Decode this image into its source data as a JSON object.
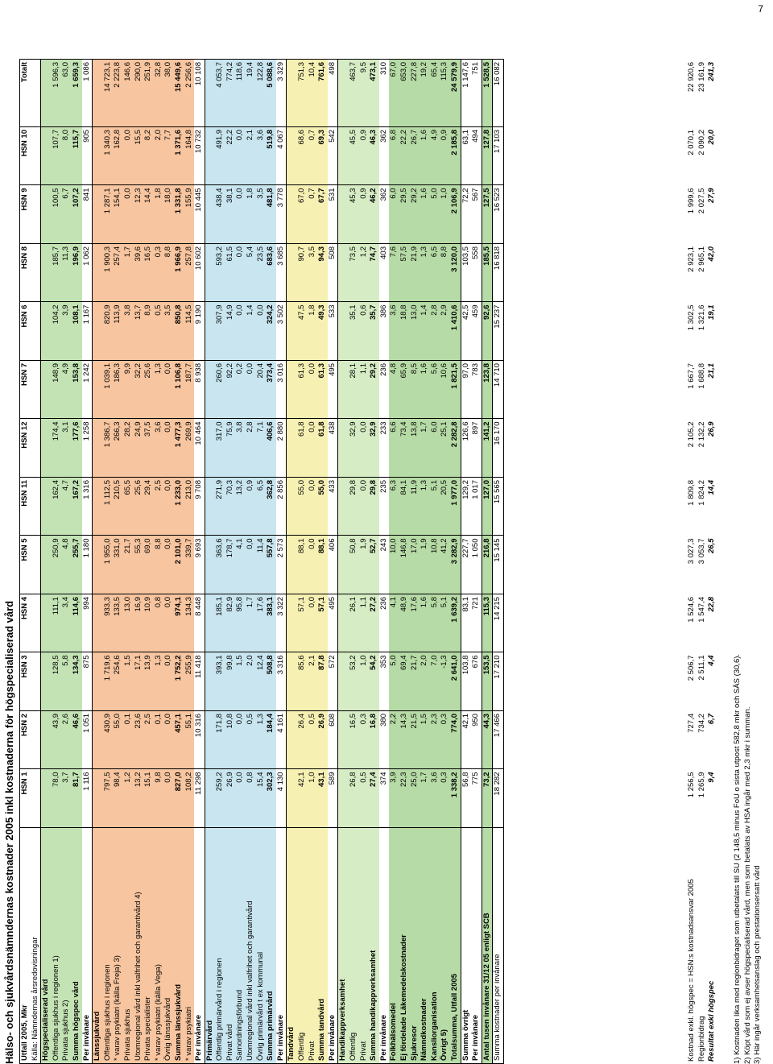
{
  "page_number": "7",
  "title": "Hälso- och sjukvårdsnämndernas kostnader 2005 inkl kostnaderna för högspecialiserad vård",
  "header": {
    "label": "Utfall 2005, Mkr",
    "source": "Källa: Nämndernas årsredovisningar",
    "columns": [
      "HSN 1",
      "HSN 2",
      "HSN 3",
      "HSN 4",
      "HSN 5",
      "HSN 11",
      "HSN 12",
      "HSN 7",
      "HSN 6",
      "HSN 8",
      "HSN 9",
      "HSN 10",
      "Totalt"
    ]
  },
  "rows": [
    {
      "label": "Högspecialiserad vård",
      "values": [],
      "style": "sec bold",
      "bg": "green"
    },
    {
      "label": "Offentliga sjukhus i regionen 1)",
      "values": [
        "78,0",
        "43,9",
        "128,5",
        "111,1",
        "250,9",
        "162,4",
        "174,4",
        "148,9",
        "104,2",
        "185,7",
        "100,5",
        "107,7",
        "1 596,3"
      ],
      "bg": "green"
    },
    {
      "label": "Privata sjukhus 2)",
      "values": [
        "3,7",
        "2,6",
        "5,8",
        "3,4",
        "4,8",
        "4,7",
        "3,1",
        "4,9",
        "3,9",
        "11,3",
        "6,7",
        "8,0",
        "63,0"
      ],
      "bg": "green"
    },
    {
      "label": "Summa högspec vård",
      "values": [
        "81,7",
        "46,6",
        "134,3",
        "114,6",
        "255,7",
        "167,2",
        "177,6",
        "153,8",
        "108,1",
        "196,9",
        "107,2",
        "115,7",
        "1 659,3"
      ],
      "style": "bold",
      "bg": "green"
    },
    {
      "label": "Per invånare",
      "values": [
        "1 116",
        "1 051",
        "875",
        "994",
        "1 180",
        "1 316",
        "1 258",
        "1 242",
        "1 167",
        "1 062",
        "841",
        "905",
        "1 086"
      ],
      "style": "bold-label",
      "bg": "white"
    },
    {
      "label": "Länssjukvård",
      "values": [],
      "style": "sec bold",
      "bg": "orange"
    },
    {
      "label": "Offentliga sjukhus i regionen",
      "values": [
        "797,5",
        "430,9",
        "1 719,6",
        "933,3",
        "1 955,0",
        "1 112,5",
        "1 386,7",
        "1 039,1",
        "820,9",
        "1 900,3",
        "1 287,1",
        "1 340,3",
        "14 723,1"
      ],
      "bg": "orange"
    },
    {
      "label": " * varav psykiatri (källa Freja) 3)",
      "values": [
        "98,4",
        "55,0",
        "254,6",
        "133,5",
        "331,0",
        "210,5",
        "266,3",
        "186,3",
        "113,9",
        "257,4",
        "154,1",
        "162,8",
        "2 223,8"
      ],
      "bg": "orange"
    },
    {
      "label": "Privata sjukhus",
      "values": [
        "1,2",
        "0,1",
        "1,5",
        "13,0",
        "21,7",
        "65,5",
        "28,2",
        "9,9",
        "3,8",
        "1,7",
        "0,0",
        "0,0",
        "146,6"
      ],
      "bg": "orange"
    },
    {
      "label": "Utomregional vård inkl valfrihet och garantivård 4)",
      "values": [
        "13,2",
        "23,6",
        "17,1",
        "16,9",
        "55,3",
        "25,6",
        "24,9",
        "32,2",
        "13,7",
        "39,6",
        "12,3",
        "15,5",
        "290,0"
      ],
      "bg": "orange"
    },
    {
      "label": "Privata specialister",
      "values": [
        "15,1",
        "2,5",
        "13,9",
        "10,9",
        "69,0",
        "29,4",
        "37,5",
        "25,6",
        "8,9",
        "16,5",
        "14,4",
        "8,2",
        "251,9"
      ],
      "bg": "orange"
    },
    {
      "label": " * varav psykiatri (källa Vega)",
      "values": [
        "9,8",
        "0,1",
        "1,3",
        "0,8",
        "8,8",
        "2,5",
        "3,6",
        "1,3",
        "0,5",
        "0,3",
        "1,8",
        "2,0",
        "32,8"
      ],
      "bg": "orange"
    },
    {
      "label": "Övrig länssjukvård",
      "values": [
        "0,0",
        "0,0",
        "0,0",
        "0,0",
        "0,0",
        "0,0",
        "0,0",
        "0,0",
        "3,5",
        "8,8",
        "18,0",
        "7,7",
        "38,0"
      ],
      "bg": "orange"
    },
    {
      "label": "Summa länssjukvård",
      "values": [
        "827,0",
        "457,1",
        "1 752,2",
        "974,1",
        "2 101,0",
        "1 233,0",
        "1 477,3",
        "1 106,8",
        "850,8",
        "1 966,9",
        "1 331,8",
        "1 371,6",
        "15 449,6"
      ],
      "style": "bold",
      "bg": "orange"
    },
    {
      "label": " * varav psykiatri",
      "values": [
        "108,2",
        "55,1",
        "255,9",
        "134,3",
        "339,7",
        "213,0",
        "269,9",
        "187,7",
        "114,5",
        "257,8",
        "155,9",
        "164,8",
        "2 256,6"
      ],
      "bg": "orange"
    },
    {
      "label": "Per invånare",
      "values": [
        "11 298",
        "10 316",
        "11 418",
        "8 448",
        "9 693",
        "9 708",
        "10 464",
        "8 938",
        "9 190",
        "10 602",
        "10 445",
        "10 732",
        "10 108"
      ],
      "style": "bold-label",
      "bg": "white"
    },
    {
      "label": "Primärvård",
      "values": [],
      "style": "sec bold",
      "bg": "blue"
    },
    {
      "label": "Offentlig primärvård i regionen",
      "values": [
        "259,2",
        "171,8",
        "393,1",
        "185,1",
        "363,6",
        "271,9",
        "317,0",
        "260,6",
        "307,9",
        "593,2",
        "438,4",
        "491,9",
        "4 053,7"
      ],
      "bg": "blue"
    },
    {
      "label": "Privat vård",
      "values": [
        "26,9",
        "10,8",
        "99,8",
        "82,9",
        "178,7",
        "70,3",
        "75,9",
        "92,2",
        "14,9",
        "61,5",
        "38,1",
        "22,2",
        "774,2"
      ],
      "bg": "blue"
    },
    {
      "label": "Samordningsförbund",
      "values": [
        "0,0",
        "0,0",
        "1,5",
        "95,8",
        "4,1",
        "13,2",
        "3,8",
        "0,2",
        "0,0",
        "0,0",
        "0,0",
        "0,0",
        "118,6"
      ],
      "bg": "blue"
    },
    {
      "label": "Utomregional vård inkl valfrihet och garantivård",
      "values": [
        "0,8",
        "0,5",
        "2,0",
        "1,7",
        "0,0",
        "0,9",
        "2,8",
        "0,0",
        "1,4",
        "5,4",
        "1,8",
        "2,1",
        "19,4"
      ],
      "bg": "blue"
    },
    {
      "label": "Övrig primärvård t ex kommunal",
      "values": [
        "15,4",
        "1,3",
        "12,4",
        "17,6",
        "11,4",
        "6,5",
        "7,1",
        "20,4",
        "0,0",
        "23,5",
        "3,5",
        "3,6",
        "122,8"
      ],
      "bg": "blue"
    },
    {
      "label": "Summa primärvård",
      "values": [
        "302,3",
        "184,4",
        "508,8",
        "383,1",
        "557,8",
        "362,8",
        "406,6",
        "373,4",
        "324,2",
        "683,6",
        "481,8",
        "519,8",
        "5 088,6"
      ],
      "style": "bold",
      "bg": "blue"
    },
    {
      "label": "Per invånare",
      "values": [
        "4 130",
        "4 161",
        "3 316",
        "3 322",
        "2 573",
        "2 856",
        "2 880",
        "3 016",
        "3 502",
        "3 685",
        "3 778",
        "4 067",
        "3 329"
      ],
      "style": "bold-label",
      "bg": "white"
    },
    {
      "label": "Tandvård",
      "values": [],
      "style": "sec bold",
      "bg": "yellow"
    },
    {
      "label": "Offentlig",
      "values": [
        "42,1",
        "26,4",
        "85,6",
        "57,1",
        "88,1",
        "55,0",
        "61,8",
        "61,3",
        "47,5",
        "90,7",
        "67,0",
        "68,6",
        "751,3"
      ],
      "bg": "yellow"
    },
    {
      "label": "Privat",
      "values": [
        "1,0",
        "0,5",
        "2,1",
        "0,0",
        "0,0",
        "0,0",
        "0,0",
        "0,0",
        "1,8",
        "3,5",
        "0,7",
        "0,7",
        "10,4"
      ],
      "bg": "yellow"
    },
    {
      "label": "Summa tandvård",
      "values": [
        "43,1",
        "26,9",
        "87,8",
        "57,1",
        "88,1",
        "55,0",
        "61,8",
        "61,3",
        "49,3",
        "94,3",
        "67,7",
        "69,3",
        "761,6"
      ],
      "style": "bold",
      "bg": "yellow"
    },
    {
      "label": "Per invånare",
      "values": [
        "589",
        "608",
        "572",
        "495",
        "406",
        "433",
        "438",
        "495",
        "533",
        "508",
        "531",
        "542",
        "498"
      ],
      "style": "bold-label",
      "bg": "white"
    },
    {
      "label": "Handikappverksamhet",
      "values": [],
      "style": "sec bold",
      "bg": "lgreen"
    },
    {
      "label": "Offentlig",
      "values": [
        "26,8",
        "16,5",
        "53,2",
        "26,1",
        "50,8",
        "29,8",
        "32,9",
        "28,1",
        "35,1",
        "73,5",
        "45,3",
        "45,5",
        "463,7"
      ],
      "bg": "lgreen"
    },
    {
      "label": "Privat",
      "values": [
        "0,5",
        "0,3",
        "1,0",
        "1,1",
        "1,9",
        "0,0",
        "0,0",
        "1,1",
        "0,6",
        "1,2",
        "0,9",
        "0,9",
        "9,5"
      ],
      "bg": "lgreen"
    },
    {
      "label": "Summa handikappverksamhet",
      "values": [
        "27,4",
        "16,8",
        "54,2",
        "27,2",
        "52,7",
        "29,8",
        "32,9",
        "29,2",
        "35,7",
        "74,7",
        "46,2",
        "46,3",
        "473,1"
      ],
      "style": "bold",
      "bg": "lgreen"
    },
    {
      "label": "Per invånare",
      "values": [
        "374",
        "380",
        "353",
        "236",
        "243",
        "235",
        "233",
        "236",
        "386",
        "403",
        "362",
        "362",
        "310"
      ],
      "style": "bold-label",
      "bg": "white"
    },
    {
      "label": "Folkhälsomedel",
      "values": [
        "3,9",
        "2,2",
        "5,0",
        "4,1",
        "10,0",
        "6,3",
        "6,6",
        "4,8",
        "3,6",
        "7,6",
        "6,0",
        "6,8",
        "67,0"
      ],
      "style": "bold-label",
      "bg": "pgreen"
    },
    {
      "label": "Ej fördelade Läkemedelskostnader",
      "values": [
        "22,3",
        "14,3",
        "69,4",
        "48,9",
        "146,8",
        "84,1",
        "73,4",
        "65,9",
        "18,8",
        "57,5",
        "29,5",
        "22,2",
        "653,0"
      ],
      "style": "bold-label",
      "bg": "pgreen"
    },
    {
      "label": "Sjukresor",
      "values": [
        "25,0",
        "21,5",
        "21,7",
        "17,6",
        "17,0",
        "11,9",
        "13,8",
        "8,5",
        "13,0",
        "21,9",
        "29,2",
        "26,7",
        "227,8"
      ],
      "style": "bold-label",
      "bg": "pgreen"
    },
    {
      "label": "Nämndkostnader",
      "values": [
        "1,7",
        "1,5",
        "2,0",
        "1,6",
        "1,9",
        "1,3",
        "1,7",
        "1,6",
        "1,4",
        "1,3",
        "1,6",
        "1,6",
        "19,2"
      ],
      "style": "bold-label",
      "bg": "pgreen"
    },
    {
      "label": "Kansliorganisation",
      "values": [
        "3,6",
        "2,3",
        "7,0",
        "5,8",
        "10,8",
        "5,1",
        "6,0",
        "5,6",
        "2,8",
        "6,5",
        "5,0",
        "4,9",
        "65,4"
      ],
      "style": "bold-label",
      "bg": "pgreen"
    },
    {
      "label": "Övrigt 5)",
      "values": [
        "0,3",
        "0,3",
        "-1,3",
        "5,1",
        "41,2",
        "20,5",
        "25,1",
        "10,6",
        "2,9",
        "8,8",
        "1,0",
        "0,9",
        "115,3"
      ],
      "style": "bold-label",
      "bg": "pgreen"
    },
    {
      "label": "Totalsumma, Utfall 2005",
      "values": [
        "1 338,2",
        "774,0",
        "2 641,0",
        "1 639,2",
        "3 282,9",
        "1 977,0",
        "2 282,8",
        "1 821,5",
        "1 410,6",
        "3 120,0",
        "2 106,9",
        "2 185,8",
        "24 579,9"
      ],
      "style": "bold",
      "bg": "pgreen"
    },
    {
      "label": "Summa övrigt",
      "values": [
        "56,8",
        "42,1",
        "103,8",
        "83,1",
        "227,7",
        "129,2",
        "126,6",
        "97,0",
        "42,5",
        "103,5",
        "72,2",
        "63,1",
        "1 147,6"
      ],
      "style": "bold-label",
      "bg": "white"
    },
    {
      "label": "Per invånare",
      "values": [
        "775",
        "950",
        "676",
        "721",
        "1 050",
        "1 017",
        "897",
        "783",
        "459",
        "558",
        "567",
        "494",
        "751"
      ],
      "style": "bold-label",
      "bg": "white"
    },
    {
      "label": "Antal tusen invånare 31/12 05  enligt SCB",
      "values": [
        "73,2",
        "44,3",
        "153,5",
        "115,3",
        "216,8",
        "127,0",
        "141,2",
        "123,8",
        "92,6",
        "185,5",
        "127,5",
        "127,8",
        "1 528,5"
      ],
      "style": "bold",
      "bg": "pgreen"
    },
    {
      "label": "Summa kostnader per invånare",
      "values": [
        "18 282",
        "17 466",
        "17 210",
        "14 215",
        "15 145",
        "15 565",
        "16 170",
        "14 710",
        "15 237",
        "16 818",
        "16 523",
        "17 103",
        "16 082"
      ],
      "bg": "white"
    }
  ],
  "lower_rows": [
    {
      "label": "Kostnad exkl. högspec = HSN:s kostnadsansvar 2005",
      "values": [
        "1 256,5",
        "727,4",
        "2 506,7",
        "1 524,6",
        "3 027,3",
        "1 809,8",
        "2 105,2",
        "1 667,7",
        "1 302,5",
        "2 923,1",
        "1 999,6",
        "2 070,1",
        "22 920,6"
      ]
    },
    {
      "label": "Regionbidrag",
      "values": [
        "1 265,9",
        "734,2",
        "2 511,1",
        "1 547,4",
        "3 053,7",
        "1 824,2",
        "2 132,2",
        "1 688,8",
        "1 321,6",
        "2 965,1",
        "2 027,5",
        "2 090,2",
        "23 161,9"
      ]
    },
    {
      "label": "Resultat exkl högspec",
      "values": [
        "9,4",
        "6,7",
        "4,4",
        "22,8",
        "26,5",
        "14,4",
        "26,9",
        "21,1",
        "19,1",
        "42,0",
        "27,9",
        "20,0",
        "241,3"
      ],
      "style": "bi"
    }
  ],
  "footnotes": [
    "1) Kostnaden lika med regionbidraget som utbetalats till SU (2 148,5 minus FoU o sista utpost 582,8 mkr och SÄS (30,6).",
    "2) Köpt vård som ej avser högspecialiserad vård, men som betalats av HSA ingår med 2,3 mkr i summan.",
    "3) Här ingår verksamhetsanslag och prestationsersatt vård"
  ]
}
